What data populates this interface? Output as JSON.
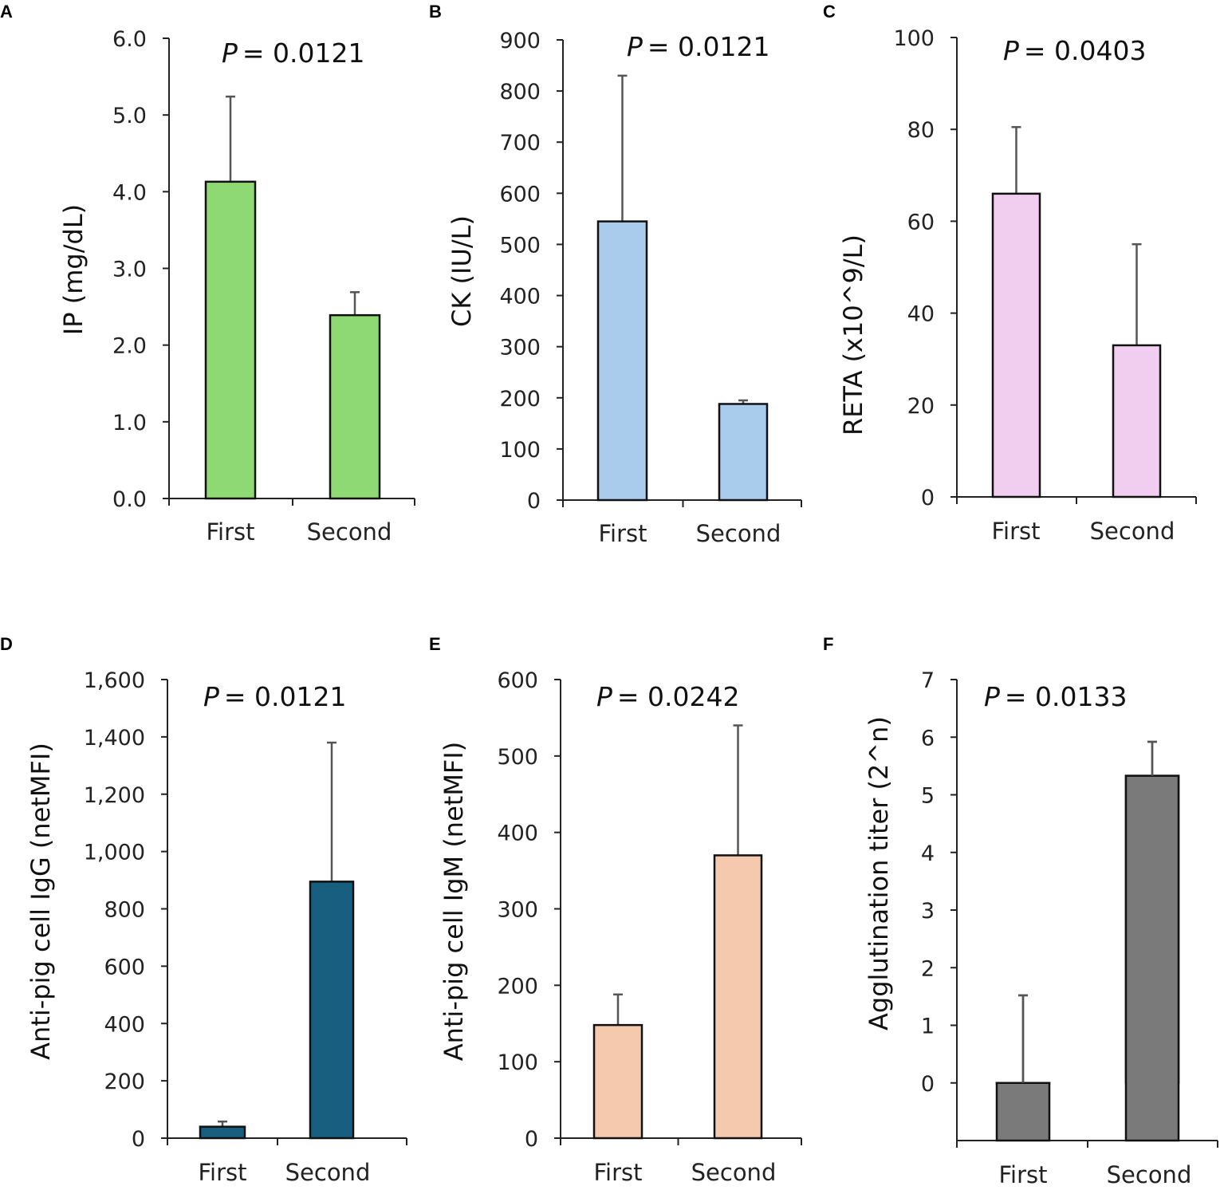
{
  "chart_data": [
    {
      "panel": "A",
      "type": "bar",
      "categories": [
        "First",
        "Second"
      ],
      "values": [
        4.13,
        2.39
      ],
      "error_upper": [
        5.24,
        2.69
      ],
      "ylabel": "IP (mg/dL)",
      "ylim": [
        0,
        6
      ],
      "yticks": [
        0,
        1,
        2,
        3,
        4,
        5,
        6
      ],
      "ytick_labels": [
        "0.0",
        "1.0",
        "2.0",
        "3.0",
        "4.0",
        "5.0",
        "6.0"
      ],
      "annotation_prefix": "P",
      "annotation_value": "= 0.0121",
      "bar_color": "#8ed973"
    },
    {
      "panel": "B",
      "type": "bar",
      "categories": [
        "First",
        "Second"
      ],
      "values": [
        545,
        188
      ],
      "error_upper": [
        830,
        195
      ],
      "ylabel": "CK (IU/L)",
      "ylim": [
        0,
        900
      ],
      "yticks": [
        0,
        100,
        200,
        300,
        400,
        500,
        600,
        700,
        800,
        900
      ],
      "ytick_labels": [
        "0",
        "100",
        "200",
        "300",
        "400",
        "500",
        "600",
        "700",
        "800",
        "900"
      ],
      "annotation_prefix": "P",
      "annotation_value": "= 0.0121",
      "bar_color": "#a9cbec"
    },
    {
      "panel": "C",
      "type": "bar",
      "categories": [
        "First",
        "Second"
      ],
      "values": [
        66,
        33
      ],
      "error_upper": [
        80.5,
        55
      ],
      "ylabel": "RETA (x10^9/L)",
      "ylim": [
        0,
        100
      ],
      "yticks": [
        0,
        20,
        40,
        60,
        80,
        100
      ],
      "ytick_labels": [
        "0",
        "20",
        "40",
        "60",
        "80",
        "100"
      ],
      "annotation_prefix": "P",
      "annotation_value": "= 0.0403",
      "bar_color": "#f1cdef"
    },
    {
      "panel": "D",
      "type": "bar",
      "categories": [
        "First",
        "Second"
      ],
      "values": [
        40,
        895
      ],
      "error_upper": [
        58,
        1380
      ],
      "ylabel": "Anti-pig cell IgG (netMFI)",
      "ylim": [
        0,
        1600
      ],
      "yticks": [
        0,
        200,
        400,
        600,
        800,
        1000,
        1200,
        1400,
        1600
      ],
      "ytick_labels": [
        "0",
        "200",
        "400",
        "600",
        "800",
        "1,000",
        "1,200",
        "1,400",
        "1,600"
      ],
      "annotation_prefix": "P",
      "annotation_value": "= 0.0121",
      "bar_color": "#175e7f"
    },
    {
      "panel": "E",
      "type": "bar",
      "categories": [
        "First",
        "Second"
      ],
      "values": [
        148,
        370
      ],
      "error_upper": [
        188,
        540
      ],
      "ylabel": "Anti-pig cell IgM (netMFI)",
      "ylim": [
        0,
        600
      ],
      "yticks": [
        0,
        100,
        200,
        300,
        400,
        500,
        600
      ],
      "ytick_labels": [
        "0",
        "100",
        "200",
        "300",
        "400",
        "500",
        "600"
      ],
      "annotation_prefix": "P",
      "annotation_value": "= 0.0242",
      "bar_color": "#f5c9ad"
    },
    {
      "panel": "F",
      "type": "bar",
      "categories": [
        "First",
        "Second"
      ],
      "values": [
        0,
        5.33
      ],
      "error_upper": [
        1.52,
        5.92
      ],
      "ylabel": "Agglutination titer (2^n)",
      "ylim": [
        -1,
        7
      ],
      "yticks": [
        0,
        1,
        2,
        3,
        4,
        5,
        6,
        7
      ],
      "ytick_labels": [
        "0",
        "1",
        "2",
        "3",
        "4",
        "5",
        "6",
        "7"
      ],
      "annotation_prefix": "P",
      "annotation_value": "= 0.0133",
      "bar_color": "#7a7a7a"
    }
  ]
}
